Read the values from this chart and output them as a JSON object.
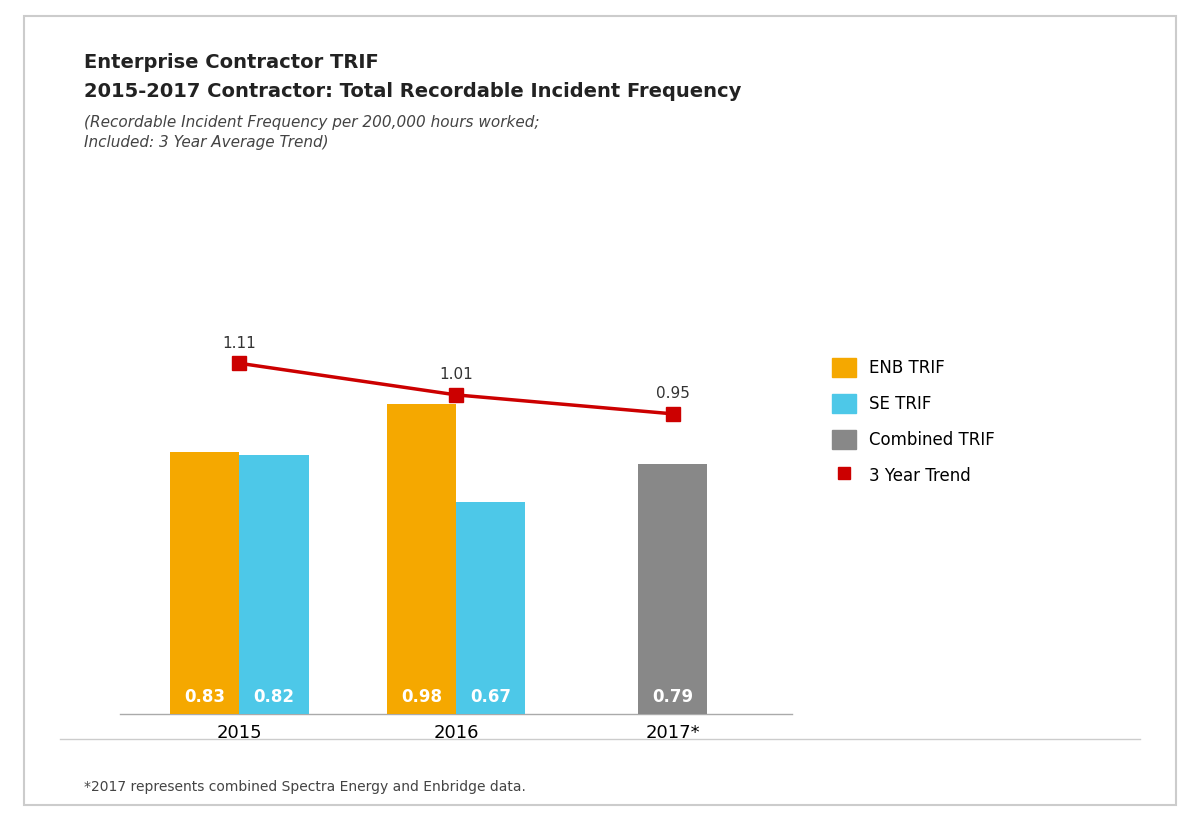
{
  "title_line1": "Enterprise Contractor TRIF",
  "title_line2": "2015-2017 Contractor: Total Recordable Incident Frequency",
  "subtitle_line1": "(Recordable Incident Frequency per 200,000 hours worked;",
  "subtitle_line2": "Included: 3 Year Average Trend)",
  "footnote": "*2017 represents combined Spectra Energy and Enbridge data.",
  "years": [
    "2015",
    "2016",
    "2017*"
  ],
  "enb_trif": [
    0.83,
    0.98
  ],
  "se_trif": [
    0.82,
    0.67
  ],
  "combined_trif": 0.79,
  "trend": [
    1.11,
    1.01,
    0.95
  ],
  "enb_color": "#F5A800",
  "se_color": "#4DC8E8",
  "combined_color": "#888888",
  "trend_color": "#CC0000",
  "bar_width": 0.32,
  "combined_bar_width": 0.32,
  "bar_label_color": "#FFFFFF",
  "bar_label_fontsize": 12,
  "trend_label_fontsize": 11,
  "ylim": [
    0,
    1.35
  ],
  "background_color": "#FFFFFF",
  "border_color": "#CCCCCC",
  "legend_labels": [
    "ENB TRIF",
    "SE TRIF",
    "Combined TRIF",
    "3 Year Trend"
  ],
  "title_fontsize": 14,
  "subtitle_fontsize": 11,
  "footnote_fontsize": 10,
  "xtick_fontsize": 13
}
